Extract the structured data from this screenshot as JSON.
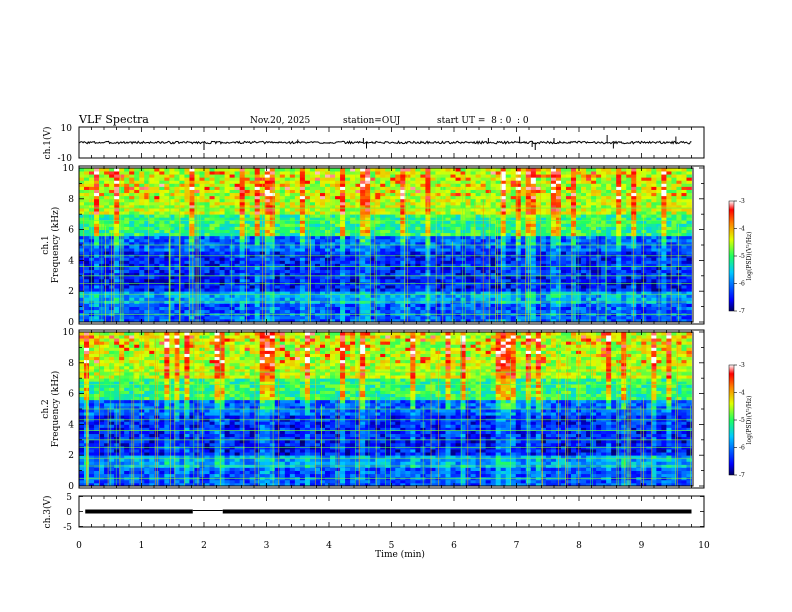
{
  "header": {
    "title": "VLF Spectra",
    "date": "Nov.20, 2025",
    "station": "station=OUJ",
    "start_ut": "start UT =  8 : 0  : 0"
  },
  "chart_data": [
    {
      "type": "line",
      "name": "ch1-waveform",
      "ylabel": "ch.1(V)",
      "ylim": [
        -10,
        10
      ],
      "yticks": [
        "10",
        "-10"
      ],
      "xlim": [
        0,
        10
      ],
      "baseline_value": 0,
      "spikes": [
        {
          "t": 2.0,
          "v": -5
        },
        {
          "t": 4.55,
          "v": 3
        },
        {
          "t": 4.6,
          "v": -4
        },
        {
          "t": 7.05,
          "v": 4
        },
        {
          "t": 7.25,
          "v": -3
        },
        {
          "t": 7.3,
          "v": -5
        },
        {
          "t": 7.6,
          "v": 3
        },
        {
          "t": 8.45,
          "v": 5
        },
        {
          "t": 8.55,
          "v": -4
        },
        {
          "t": 9.55,
          "v": 4
        },
        {
          "t": 6.55,
          "v": 3
        },
        {
          "t": 3.5,
          "v": 2
        }
      ]
    },
    {
      "type": "heatmap",
      "name": "ch1-spectrogram",
      "ylabel": "ch.1",
      "ylabel2": "Frequency (kHz)",
      "ylim": [
        0,
        10
      ],
      "yticks": [
        "0",
        "2",
        "4",
        "6",
        "8",
        "10"
      ],
      "xlim": [
        0,
        10
      ],
      "colorbar": {
        "label": "log(PSD)(V²/Hz)",
        "range": [
          -7,
          -3
        ],
        "ticks": [
          "-3",
          "-4",
          "-5",
          "-6",
          "-7"
        ]
      },
      "seed": 7
    },
    {
      "type": "heatmap",
      "name": "ch2-spectrogram",
      "ylabel": "ch.2",
      "ylabel2": "Frequency (kHz)",
      "ylim": [
        0,
        10
      ],
      "yticks": [
        "0",
        "2",
        "4",
        "6",
        "8",
        "10"
      ],
      "xlim": [
        0,
        10
      ],
      "colorbar": {
        "label": "log(PSD)(V²/Hz)",
        "range": [
          -7,
          -3
        ],
        "ticks": [
          "-3",
          "-4",
          "-5",
          "-6",
          "-7"
        ]
      },
      "seed": 13
    },
    {
      "type": "line",
      "name": "ch3-signal",
      "ylabel": "ch.3(V)",
      "ylim": [
        -5,
        5
      ],
      "yticks": [
        "5",
        "0",
        "-5"
      ],
      "xlim": [
        0,
        10
      ],
      "level_value": 0,
      "gap": [
        1.82,
        2.3
      ],
      "data_end": 9.8
    }
  ],
  "xaxis": {
    "label": "Time (min)",
    "ticks": [
      "0",
      "1",
      "2",
      "3",
      "4",
      "5",
      "6",
      "7",
      "8",
      "9",
      "10"
    ]
  },
  "colors": {
    "axis": "#000000",
    "background": "#ffffff"
  }
}
